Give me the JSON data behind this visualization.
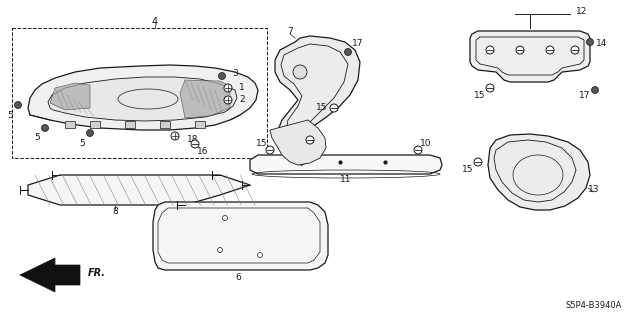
{
  "diagram_code": "S5P4-B3940A",
  "bg_color": "#ffffff",
  "line_color": "#1a1a1a",
  "fig_width": 6.4,
  "fig_height": 3.19,
  "dpi": 100
}
